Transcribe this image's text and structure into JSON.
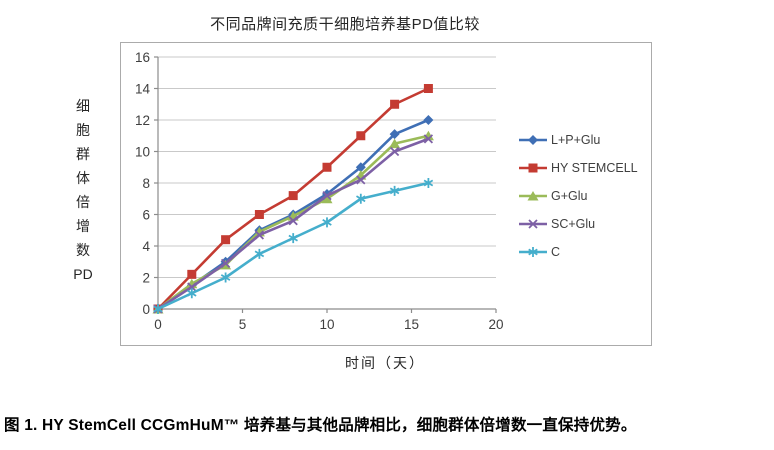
{
  "page": {
    "caption": "图 1. HY StemCell CCGmHuM™ 培养基与其他品牌相比，细胞群体倍增数一直保持优势。"
  },
  "chart_data": {
    "type": "line",
    "title": "不同品牌间充质干细胞培养基PD值比较",
    "xlabel": "时间（天）",
    "ylabel": "细胞群体倍增数PD",
    "ylabel_vertical": "细\n胞\n群\n体\n倍\n增\n数\nPD",
    "xlim": [
      0,
      20
    ],
    "ylim": [
      0,
      16
    ],
    "xticks": [
      0,
      5,
      10,
      15,
      20
    ],
    "yticks": [
      0,
      2,
      4,
      6,
      8,
      10,
      12,
      14,
      16
    ],
    "grid": true,
    "legend_position": "right",
    "axis_color": "#8c8c8c",
    "grid_color": "#c9c9c9",
    "x": [
      0,
      2,
      4,
      6,
      8,
      10,
      12,
      14,
      16
    ],
    "series": [
      {
        "name": "L+P+Glu",
        "color": "#3f6fb5",
        "marker": "diamond",
        "values": [
          0,
          1.5,
          3.0,
          5.0,
          6.0,
          7.3,
          9.0,
          11.1,
          12.0
        ]
      },
      {
        "name": "HY STEMCELL",
        "color": "#c43b32",
        "marker": "square",
        "values": [
          0,
          2.2,
          4.4,
          6.0,
          7.2,
          9.0,
          11.0,
          13.0,
          14.0
        ]
      },
      {
        "name": "G+Glu",
        "color": "#9bbb59",
        "marker": "triangle",
        "values": [
          0,
          1.6,
          2.8,
          4.9,
          5.9,
          7.0,
          8.5,
          10.5,
          11.0
        ]
      },
      {
        "name": "SC+Glu",
        "color": "#7d60a5",
        "marker": "x",
        "values": [
          0,
          1.4,
          2.9,
          4.7,
          5.6,
          7.2,
          8.2,
          10.0,
          10.8
        ]
      },
      {
        "name": "C",
        "color": "#45aecc",
        "marker": "asterisk",
        "values": [
          0,
          1.0,
          2.0,
          3.5,
          4.5,
          5.5,
          7.0,
          7.5,
          8.0
        ]
      }
    ]
  }
}
